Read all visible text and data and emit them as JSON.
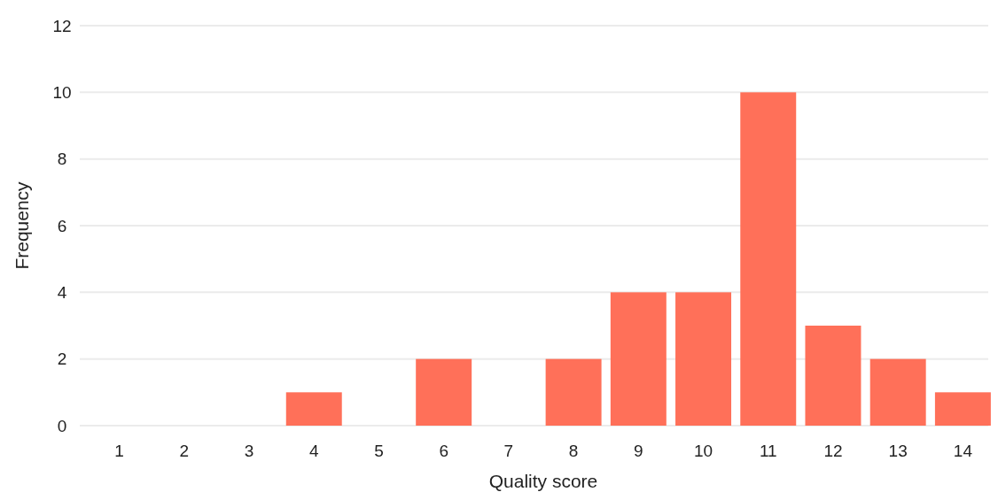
{
  "chart_data": {
    "type": "bar",
    "xlabel": "Quality score",
    "ylabel": "Frequency",
    "categories": [
      "1",
      "2",
      "3",
      "4",
      "5",
      "6",
      "7",
      "8",
      "9",
      "10",
      "11",
      "12",
      "13",
      "14"
    ],
    "values": [
      0,
      0,
      0,
      1,
      0,
      2,
      0,
      2,
      4,
      4,
      10,
      3,
      2,
      1
    ],
    "color": "#ff7059",
    "ylim": [
      0,
      12
    ],
    "yticks": [
      0,
      2,
      4,
      6,
      8,
      10,
      12
    ],
    "grid": "y"
  }
}
